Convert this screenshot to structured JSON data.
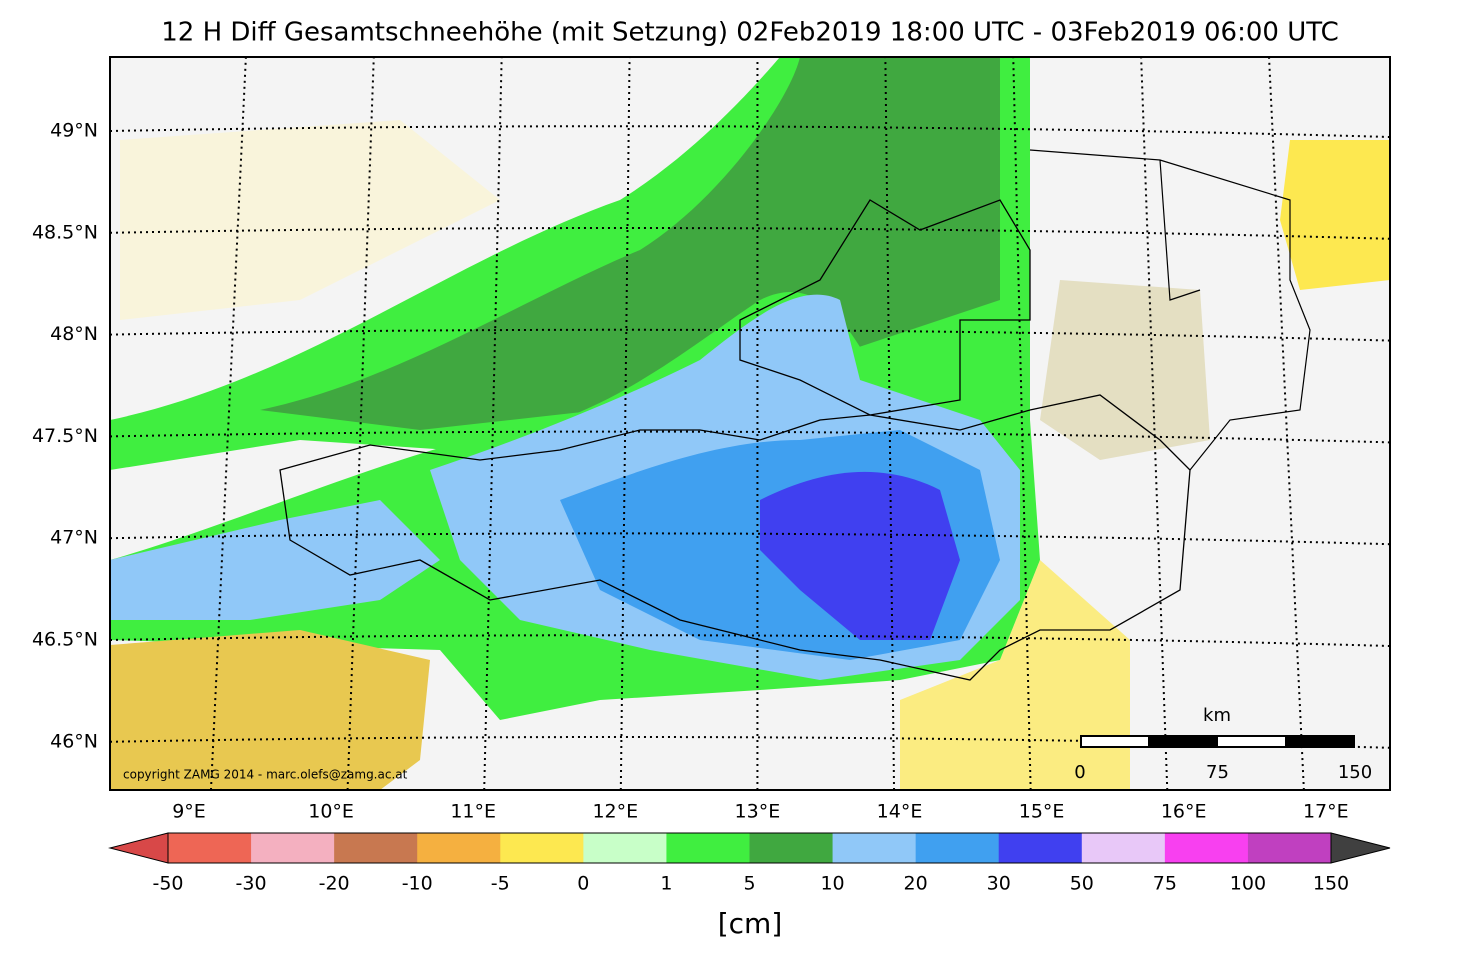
{
  "title": "12 H Diff Gesamtschneehöhe (mit Setzung) 02Feb2019 18:00 UTC - 03Feb2019 06:00 UTC",
  "map": {
    "lat_labels": [
      "49°N",
      "48.5°N",
      "48°N",
      "47.5°N",
      "47°N",
      "46.5°N",
      "46°N"
    ],
    "lon_labels": [
      "9°E",
      "10°E",
      "11°E",
      "12°E",
      "13°E",
      "14°E",
      "15°E",
      "16°E",
      "17°E"
    ],
    "copyright": "copyright ZAMG 2014 - marc.olefs@zamg.ac.at",
    "scale_bar": {
      "unit": "km",
      "labels": [
        "0",
        "75",
        "150"
      ]
    }
  },
  "colorbar": {
    "ticks": [
      -50,
      -30,
      -20,
      -10,
      -5,
      0,
      1,
      5,
      10,
      20,
      30,
      50,
      75,
      100,
      150
    ],
    "colors": [
      "#ee6655",
      "#f4b0c0",
      "#c87850",
      "#f5b040",
      "#fde850",
      "#c8ffc8",
      "#40ee40",
      "#40a840",
      "#90c8f8",
      "#40a0f0",
      "#4040f0",
      "#e8c8f8",
      "#f840f0",
      "#c040c0"
    ],
    "under_color": "#d84848",
    "over_color": "#404040",
    "unit": "[cm]"
  }
}
